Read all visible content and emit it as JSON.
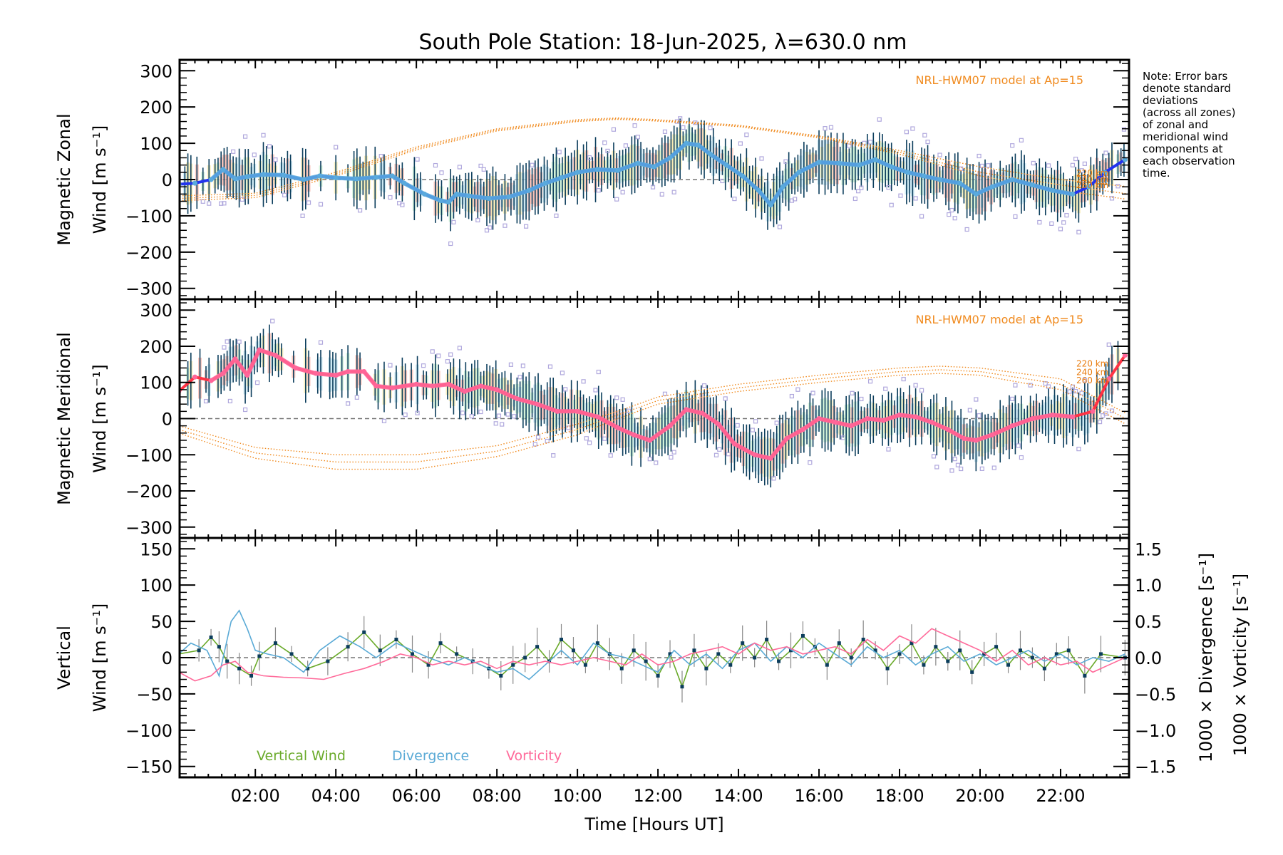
{
  "chart_data": [
    {
      "id": "zonal",
      "type": "line",
      "title": "South Pole Station: 18-Jun-2025, λ=630.0 nm",
      "ylabel_line1": "Magnetic Zonal",
      "ylabel_line2": "Wind [m s⁻¹]",
      "ylim": [
        -330,
        330
      ],
      "yticks": [
        300,
        200,
        100,
        0,
        -100,
        -200,
        -300
      ],
      "yticklabels": [
        "300",
        "200",
        "100",
        "0",
        "−100",
        "−200",
        "−300"
      ],
      "model_label": "NRL-HWM07 model at Ap=15",
      "altitude_labels": [
        "220 km",
        "240 km",
        "260 km"
      ],
      "line_color": "#2233ee",
      "marker_color": "#5aaadd",
      "series": [
        {
          "name": "Zonal wind (mean)",
          "x": [
            0.1,
            0.5,
            0.9,
            1.2,
            1.5,
            1.8,
            2.2,
            2.7,
            3.2,
            3.6,
            4.0,
            4.5,
            5.0,
            5.4,
            5.7,
            6.2,
            6.6,
            6.8,
            7.0,
            7.3,
            7.8,
            8.3,
            8.8,
            9.2,
            9.6,
            10.0,
            10.5,
            11.0,
            11.5,
            11.9,
            12.3,
            12.7,
            13.0,
            13.3,
            13.7,
            14.1,
            14.5,
            14.8,
            15.1,
            15.5,
            16.0,
            16.5,
            17.0,
            17.4,
            17.8,
            18.2,
            18.6,
            19.0,
            19.5,
            19.9,
            20.3,
            20.8,
            21.3,
            21.8,
            22.3,
            22.7,
            23.1,
            23.6
          ],
          "y": [
            -13,
            -10,
            0,
            28,
            2,
            8,
            14,
            12,
            0,
            10,
            5,
            2,
            6,
            10,
            -10,
            -40,
            -58,
            -62,
            -40,
            -45,
            -52,
            -48,
            -30,
            -10,
            5,
            20,
            28,
            25,
            45,
            35,
            60,
            100,
            95,
            70,
            40,
            10,
            -30,
            -70,
            -20,
            20,
            48,
            45,
            40,
            55,
            35,
            20,
            10,
            0,
            -10,
            -40,
            -20,
            0,
            -15,
            -30,
            -40,
            -20,
            20,
            55
          ]
        }
      ],
      "model_curves": [
        {
          "name": "220 km",
          "x": [
            0.1,
            2,
            4,
            6,
            8,
            10,
            11,
            12,
            14,
            16,
            18,
            20,
            22,
            23.7
          ],
          "y": [
            -45,
            -38,
            20,
            90,
            140,
            165,
            170,
            165,
            150,
            120,
            80,
            35,
            0,
            -20
          ]
        },
        {
          "name": "240 km",
          "x": [
            0.1,
            2,
            4,
            6,
            8,
            10,
            11,
            12,
            14,
            16,
            18,
            20,
            22,
            23.7
          ],
          "y": [
            -52,
            -44,
            15,
            86,
            137,
            162,
            168,
            163,
            148,
            118,
            75,
            20,
            -15,
            -40
          ]
        },
        {
          "name": "260 km",
          "x": [
            0.1,
            2,
            4,
            6,
            8,
            10,
            11,
            12,
            14,
            16,
            18,
            20,
            22,
            23.7
          ],
          "y": [
            -58,
            -50,
            10,
            82,
            134,
            160,
            166,
            161,
            146,
            115,
            70,
            10,
            -30,
            -55
          ]
        }
      ]
    },
    {
      "id": "meridional",
      "type": "line",
      "ylabel_line1": "Magnetic Meridional",
      "ylabel_line2": "Wind [m s⁻¹]",
      "ylim": [
        -330,
        330
      ],
      "yticks": [
        300,
        200,
        100,
        0,
        -100,
        -200,
        -300
      ],
      "yticklabels": [
        "300",
        "200",
        "100",
        "0",
        "−100",
        "−200",
        "−300"
      ],
      "model_label": "NRL-HWM07 model at Ap=15",
      "altitude_labels": [
        "220 km",
        "240 km",
        "260 km"
      ],
      "line_color": "#ff3344",
      "marker_color": "#ff6699",
      "series": [
        {
          "name": "Meridional wind (mean)",
          "x": [
            0.1,
            0.5,
            0.9,
            1.2,
            1.5,
            1.8,
            2.1,
            2.5,
            3.0,
            3.5,
            4.0,
            4.3,
            4.7,
            5.0,
            5.4,
            6.0,
            6.4,
            6.8,
            7.2,
            7.6,
            8.0,
            8.5,
            9.0,
            9.5,
            10.0,
            10.5,
            11.0,
            11.4,
            11.8,
            12.3,
            12.7,
            13.1,
            13.5,
            13.9,
            14.4,
            14.8,
            15.2,
            15.6,
            16.0,
            16.4,
            16.8,
            17.2,
            17.6,
            18.0,
            18.4,
            18.8,
            19.2,
            19.6,
            19.9,
            20.3,
            20.8,
            21.3,
            21.8,
            22.3,
            22.8,
            23.2,
            23.6
          ],
          "y": [
            75,
            115,
            105,
            125,
            165,
            120,
            190,
            175,
            140,
            125,
            120,
            130,
            130,
            90,
            85,
            95,
            90,
            95,
            75,
            90,
            80,
            55,
            40,
            20,
            20,
            5,
            -25,
            -45,
            -60,
            -20,
            25,
            15,
            -15,
            -70,
            -100,
            -110,
            -55,
            -30,
            0,
            -10,
            -20,
            0,
            -5,
            10,
            5,
            -10,
            -30,
            -55,
            -60,
            -45,
            -20,
            0,
            10,
            5,
            20,
            110,
            175
          ]
        }
      ],
      "model_curves": [
        {
          "name": "220 km",
          "x": [
            0.1,
            2,
            4,
            6,
            8,
            10,
            11,
            12,
            14,
            16,
            18,
            19,
            20,
            22,
            23.7
          ],
          "y": [
            -20,
            -80,
            -100,
            -100,
            -75,
            -15,
            20,
            60,
            95,
            120,
            140,
            145,
            140,
            110,
            10
          ]
        },
        {
          "name": "240 km",
          "x": [
            0.1,
            2,
            4,
            6,
            8,
            10,
            11,
            12,
            14,
            16,
            18,
            19,
            20,
            22,
            23.7
          ],
          "y": [
            -30,
            -95,
            -120,
            -120,
            -90,
            -30,
            10,
            50,
            85,
            110,
            130,
            135,
            130,
            95,
            -5
          ]
        },
        {
          "name": "260 km",
          "x": [
            0.1,
            2,
            4,
            6,
            8,
            10,
            11,
            12,
            14,
            16,
            18,
            19,
            20,
            22,
            23.7
          ],
          "y": [
            -40,
            -110,
            -140,
            -140,
            -105,
            -45,
            0,
            40,
            75,
            100,
            120,
            125,
            120,
            80,
            -20
          ]
        }
      ]
    },
    {
      "id": "vertical",
      "type": "line",
      "ylabel_line1": "Vertical",
      "ylabel_line2": "Wind [m s⁻¹]",
      "ylim": [
        -165,
        165
      ],
      "yticks": [
        150,
        100,
        50,
        0,
        -50,
        -100,
        -150
      ],
      "yticklabels": [
        "150",
        "100",
        "50",
        "0",
        "−50",
        "−100",
        "−150"
      ],
      "y2label_1": "1000 × Divergence [s⁻¹]",
      "y2label_2": "1000 × Vorticity [s⁻¹]",
      "y2lim": [
        -1.65,
        1.65
      ],
      "y2ticks": [
        1.5,
        1.0,
        0.5,
        0.0,
        -0.5,
        -1.0,
        -1.5
      ],
      "y2ticklabels": [
        "1.5",
        "1.0",
        "0.5",
        "0.0",
        "−0.5",
        "−1.0",
        "−1.5"
      ],
      "legend": [
        "Vertical Wind",
        "Divergence",
        "Vorticity"
      ],
      "legend_placement": "bottom-left",
      "series": [
        {
          "name": "Vertical Wind",
          "color": "#6aaa2a",
          "axis": "left",
          "x": [
            0.1,
            0.6,
            0.9,
            1.1,
            1.3,
            1.6,
            1.9,
            2.1,
            2.5,
            2.9,
            3.3,
            3.8,
            4.3,
            4.7,
            5.1,
            5.5,
            5.9,
            6.3,
            6.6,
            7.0,
            7.4,
            7.8,
            8.1,
            8.4,
            8.7,
            9.0,
            9.3,
            9.6,
            9.9,
            10.2,
            10.5,
            10.8,
            11.1,
            11.4,
            11.7,
            12.0,
            12.3,
            12.6,
            12.9,
            13.2,
            13.5,
            13.8,
            14.1,
            14.4,
            14.7,
            15.0,
            15.3,
            15.6,
            15.9,
            16.2,
            16.5,
            16.8,
            17.1,
            17.4,
            17.7,
            18.0,
            18.3,
            18.6,
            18.9,
            19.2,
            19.5,
            19.8,
            20.1,
            20.4,
            20.7,
            21.0,
            21.3,
            21.6,
            21.9,
            22.2,
            22.6,
            23.0,
            23.6
          ],
          "y": [
            5,
            10,
            28,
            15,
            -5,
            -15,
            -25,
            2,
            20,
            5,
            -15,
            -5,
            15,
            35,
            10,
            25,
            5,
            -10,
            20,
            5,
            -5,
            -15,
            -25,
            -10,
            0,
            15,
            -5,
            25,
            10,
            -10,
            20,
            5,
            -15,
            10,
            -5,
            -25,
            5,
            -40,
            10,
            -15,
            5,
            -10,
            20,
            0,
            25,
            -5,
            10,
            30,
            15,
            -10,
            20,
            0,
            25,
            10,
            -15,
            5,
            20,
            -10,
            15,
            -5,
            10,
            -20,
            5,
            15,
            -10,
            10,
            0,
            -15,
            5,
            10,
            -25,
            5,
            0
          ]
        },
        {
          "name": "Divergence",
          "color": "#5aaad6",
          "axis": "right",
          "x": [
            0.1,
            0.4,
            0.8,
            1.1,
            1.4,
            1.6,
            1.8,
            2.0,
            2.3,
            2.7,
            3.2,
            3.6,
            4.1,
            4.6,
            5.0,
            5.5,
            5.9,
            6.3,
            6.8,
            7.2,
            7.6,
            8.0,
            8.4,
            8.8,
            9.2,
            9.6,
            10.0,
            10.4,
            10.8,
            11.2,
            11.6,
            12.0,
            12.4,
            12.8,
            13.2,
            13.6,
            14.0,
            14.4,
            14.8,
            15.2,
            15.6,
            16.0,
            16.4,
            16.8,
            17.2,
            17.6,
            18.0,
            18.4,
            18.8,
            19.2,
            19.6,
            20.0,
            20.4,
            20.8,
            21.2,
            21.6,
            22.0,
            22.4,
            22.8,
            23.2,
            23.6
          ],
          "y": [
            0.05,
            0.2,
            0.1,
            -0.25,
            0.5,
            0.65,
            0.4,
            0.1,
            0.05,
            0.0,
            -0.2,
            0.1,
            0.3,
            0.15,
            0.0,
            0.2,
            0.1,
            0.0,
            -0.1,
            0.0,
            -0.1,
            -0.2,
            -0.15,
            -0.3,
            -0.1,
            0.1,
            -0.1,
            0.2,
            0.05,
            0.0,
            -0.1,
            -0.2,
            0.1,
            -0.1,
            0.05,
            -0.15,
            0.1,
            0.2,
            -0.05,
            0.15,
            0.0,
            0.2,
            0.05,
            -0.1,
            0.15,
            0.0,
            0.1,
            -0.1,
            0.05,
            0.15,
            -0.05,
            0.05,
            -0.1,
            0.0,
            0.1,
            -0.05,
            0.05,
            -0.1,
            0.0,
            -0.05,
            0.05
          ]
        },
        {
          "name": "Vorticity",
          "color": "#ff6a9a",
          "axis": "right",
          "x": [
            0.1,
            0.5,
            0.9,
            1.2,
            1.5,
            1.8,
            2.2,
            2.7,
            3.2,
            3.7,
            4.2,
            4.7,
            5.2,
            5.6,
            6.0,
            6.4,
            6.8,
            7.2,
            7.6,
            8.0,
            8.4,
            8.8,
            9.2,
            9.6,
            10.0,
            10.4,
            10.8,
            11.2,
            11.6,
            12.0,
            12.4,
            12.8,
            13.2,
            13.6,
            14.0,
            14.4,
            14.8,
            15.2,
            15.6,
            16.0,
            16.4,
            16.8,
            17.2,
            17.6,
            18.0,
            18.4,
            18.8,
            19.2,
            19.6,
            20.0,
            20.4,
            20.8,
            21.2,
            21.6,
            22.0,
            22.4,
            22.8,
            23.2,
            23.6
          ],
          "y": [
            -0.2,
            -0.32,
            -0.25,
            -0.1,
            -0.05,
            -0.2,
            -0.25,
            -0.27,
            -0.28,
            -0.3,
            -0.22,
            -0.15,
            -0.05,
            0.05,
            0.0,
            -0.1,
            -0.05,
            -0.1,
            -0.05,
            -0.15,
            -0.05,
            -0.1,
            -0.05,
            -0.1,
            -0.05,
            0.0,
            -0.05,
            -0.1,
            0.05,
            -0.1,
            -0.05,
            0.05,
            0.1,
            0.15,
            0.05,
            0.2,
            0.1,
            0.15,
            0.05,
            0.1,
            0.15,
            0.05,
            0.25,
            0.1,
            0.3,
            0.2,
            0.4,
            0.3,
            0.2,
            0.1,
            -0.05,
            0.1,
            -0.1,
            0.0,
            -0.1,
            -0.05,
            -0.2,
            -0.1,
            0.0
          ]
        }
      ]
    }
  ],
  "shared": {
    "xlabel": "Time [Hours UT]",
    "xlim": [
      0.12,
      23.7
    ],
    "xticks": [
      2,
      4,
      6,
      8,
      10,
      12,
      14,
      16,
      18,
      20,
      22
    ],
    "xticklabels": [
      "02:00",
      "04:00",
      "06:00",
      "08:00",
      "10:00",
      "12:00",
      "14:00",
      "16:00",
      "18:00",
      "20:00",
      "22:00"
    ],
    "note_lines": [
      "Note: Error bars",
      "denote standard",
      "deviations",
      "(across all zones)",
      "of zonal and",
      "meridional wind",
      "components at",
      "each observation",
      "time."
    ]
  }
}
